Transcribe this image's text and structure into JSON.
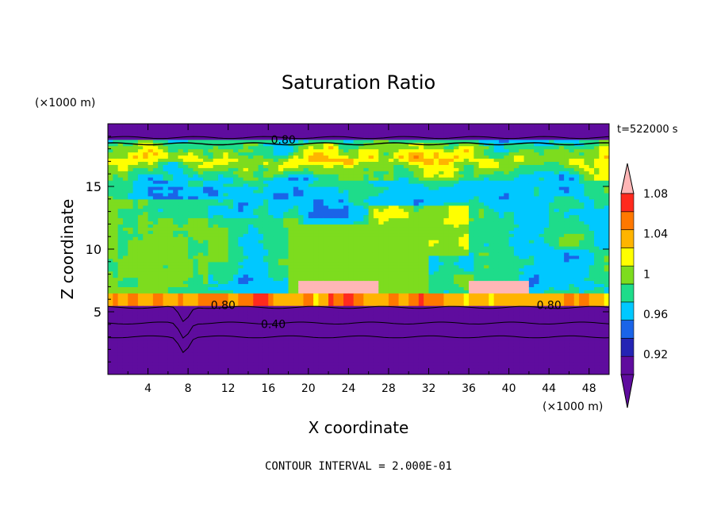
{
  "chart_data": {
    "type": "heatmap",
    "title": "Saturation Ratio",
    "xlabel": "X coordinate",
    "ylabel": "Z coordinate",
    "x_unit": "(×1000 m)",
    "y_unit": "(×1000 m)",
    "time_label": "t=522000 s",
    "footer": "CONTOUR INTERVAL = 2.000E-01",
    "xlim": [
      0,
      50
    ],
    "ylim": [
      0,
      20
    ],
    "x_ticks": [
      4,
      8,
      12,
      16,
      20,
      24,
      28,
      32,
      36,
      40,
      44,
      48
    ],
    "y_ticks": [
      5,
      10,
      15
    ],
    "contour_labels": [
      {
        "text": "0.80",
        "x": 17.5,
        "y": 18.6
      },
      {
        "text": "0.80",
        "x": 11.5,
        "y": 5.4
      },
      {
        "text": "0.40",
        "x": 16.5,
        "y": 3.9
      },
      {
        "text": "0.80",
        "x": 44.0,
        "y": 5.4
      }
    ],
    "colorbar": {
      "labels": [
        "1.08",
        "1.04",
        "1",
        "0.96",
        "0.92"
      ],
      "label_values": [
        1.08,
        1.04,
        1.0,
        0.96,
        0.92
      ],
      "levels": [
        0.9,
        0.92,
        0.94,
        0.96,
        0.98,
        1.0,
        1.02,
        1.04,
        1.06,
        1.08,
        1.1
      ],
      "colors": [
        "#5f0c9e",
        "#2424b4",
        "#1a64e8",
        "#00c8ff",
        "#1edc8a",
        "#7ddc1e",
        "#ffff00",
        "#ffb400",
        "#ff7800",
        "#ff2a1e",
        "#ffb6b6"
      ],
      "under_color": "#5f0c9e",
      "over_color": "#ffb6b6"
    },
    "regions": {
      "dry_layer_below_km": 5.5,
      "dry_layer_above_km": 18.8,
      "cloud_layer_km": [
        5.5,
        18.8
      ]
    }
  }
}
